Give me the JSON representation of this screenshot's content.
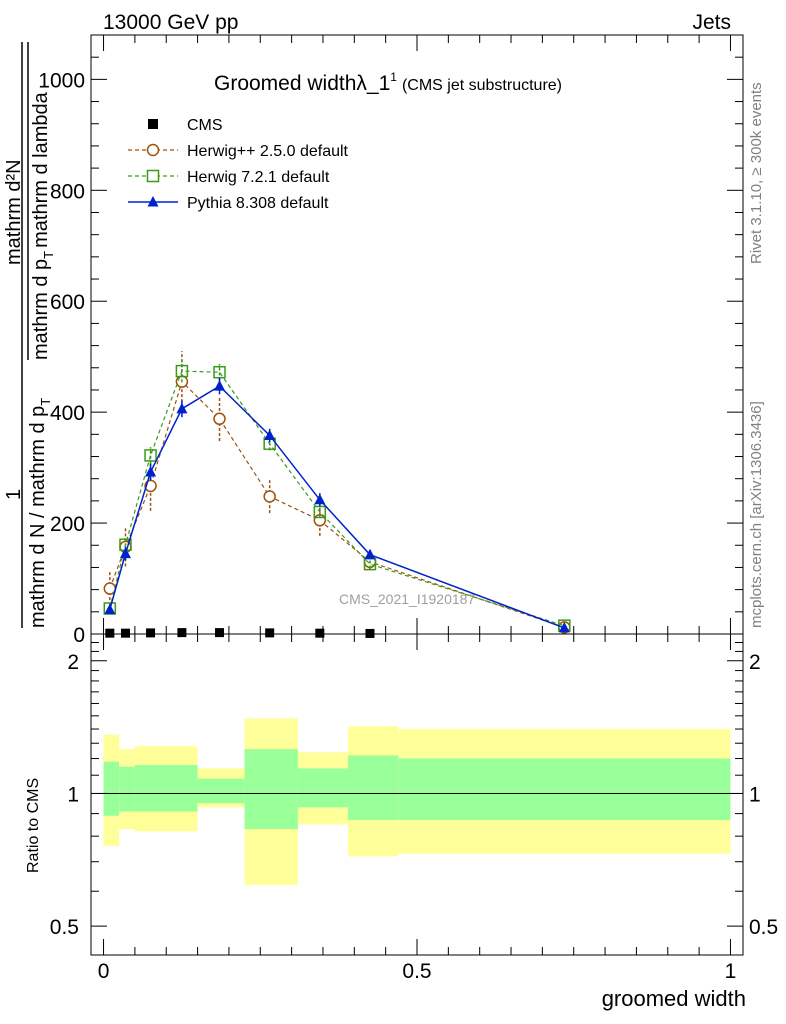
{
  "header": {
    "left": "13000 GeV pp",
    "right": "Jets"
  },
  "side_labels": {
    "top": "Rivet 3.1.10, ≥ 300k events",
    "bottom": "mcplots.cern.ch [arXiv:1306.3436]"
  },
  "colors": {
    "cms": "#000000",
    "herwigpp": "#a0520b",
    "herwig7": "#3a9a1a",
    "pythia": "#0022cc",
    "band_outer": "#ffff99",
    "band_inner": "#99ff99"
  },
  "chart_data": [
    {
      "type": "line",
      "title": "Groomed widthλ_1",
      "title_sup": "1",
      "title_suffix": "(CMS jet substructure)",
      "watermark": "CMS_2021_I1920187",
      "ylabel_numerator": "1",
      "ylabel_top": "mathrm d²N",
      "ylabel_mid": "mathrm d p",
      "ylabel_mid_sub": "T",
      "ylabel_mid_suffix": "mathrm d lambda",
      "ylabel_bottom": "mathrm d N / mathrm d p",
      "ylabel_bottom_sub": "T",
      "xlim": [
        -0.02,
        1.02
      ],
      "ylim": [
        0,
        1080
      ],
      "yticks": [
        0,
        200,
        400,
        600,
        800,
        1000
      ],
      "ytick_labels": [
        "0",
        "200",
        "400",
        "600",
        "800",
        "1000"
      ],
      "series": [
        {
          "name": "CMS",
          "marker": "square",
          "x": [
            0.01,
            0.035,
            0.075,
            0.125,
            0.185,
            0.265,
            0.345,
            0.425
          ],
          "y": [
            1.5,
            1.5,
            2,
            2.5,
            2.5,
            2,
            1.5,
            1
          ]
        },
        {
          "name": "Herwig++ 2.5.0 default",
          "marker": "circle",
          "dashed": true,
          "x": [
            0.01,
            0.035,
            0.075,
            0.125,
            0.185,
            0.265,
            0.345,
            0.425,
            0.735
          ],
          "y": [
            82,
            157,
            267,
            455,
            388,
            248,
            205,
            130,
            12
          ],
          "err": [
            30,
            35,
            45,
            55,
            40,
            30,
            28,
            15,
            5
          ]
        },
        {
          "name": "Herwig 7.2.1 default",
          "marker": "open-square",
          "dashed": true,
          "x": [
            0.01,
            0.035,
            0.075,
            0.125,
            0.185,
            0.265,
            0.345,
            0.425,
            0.735
          ],
          "y": [
            46,
            161,
            322,
            474,
            472,
            343,
            220,
            126,
            15
          ],
          "err": [
            8,
            12,
            15,
            20,
            15,
            12,
            10,
            8,
            3
          ]
        },
        {
          "name": "Pythia 8.308 default",
          "marker": "triangle",
          "dashed": false,
          "x": [
            0.01,
            0.035,
            0.075,
            0.125,
            0.185,
            0.265,
            0.345,
            0.425,
            0.735
          ],
          "y": [
            44,
            145,
            292,
            406,
            447,
            358,
            242,
            143,
            11
          ],
          "err": [
            8,
            12,
            15,
            15,
            15,
            12,
            12,
            8,
            3
          ]
        }
      ]
    },
    {
      "type": "area",
      "xlabel": "groomed width",
      "ylabel": "Ratio to CMS",
      "yscale": "log",
      "ylim": [
        0.43,
        2.3
      ],
      "yticks": [
        0.5,
        1,
        2
      ],
      "ytick_labels": [
        "0.5",
        "1",
        "2"
      ],
      "xticks": [
        0,
        0.5,
        1
      ],
      "xtick_labels": [
        "0",
        "0.5",
        "1"
      ],
      "reference_line": 1,
      "bins": [
        {
          "lo": 0.0,
          "hi": 0.025,
          "outer": [
            0.76,
            1.36
          ],
          "inner": [
            0.89,
            1.18
          ]
        },
        {
          "lo": 0.025,
          "hi": 0.05,
          "outer": [
            0.83,
            1.26
          ],
          "inner": [
            0.91,
            1.15
          ]
        },
        {
          "lo": 0.05,
          "hi": 0.15,
          "outer": [
            0.82,
            1.28
          ],
          "inner": [
            0.91,
            1.16
          ]
        },
        {
          "lo": 0.15,
          "hi": 0.225,
          "outer": [
            0.93,
            1.14
          ],
          "inner": [
            0.95,
            1.08
          ]
        },
        {
          "lo": 0.225,
          "hi": 0.31,
          "outer": [
            0.62,
            1.48
          ],
          "inner": [
            0.83,
            1.26
          ]
        },
        {
          "lo": 0.31,
          "hi": 0.39,
          "outer": [
            0.85,
            1.24
          ],
          "inner": [
            0.93,
            1.14
          ]
        },
        {
          "lo": 0.39,
          "hi": 0.47,
          "outer": [
            0.72,
            1.42
          ],
          "inner": [
            0.87,
            1.22
          ]
        },
        {
          "lo": 0.47,
          "hi": 1.0,
          "outer": [
            0.73,
            1.4
          ],
          "inner": [
            0.87,
            1.2
          ]
        }
      ]
    }
  ]
}
